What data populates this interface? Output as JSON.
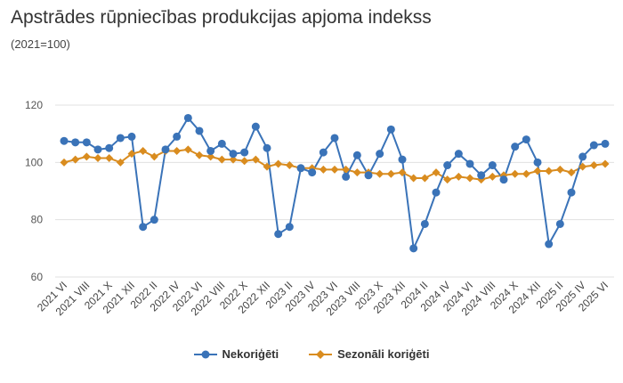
{
  "title": "Apstrādes rūpniecības produkcijas apjoma indekss",
  "subtitle": "(2021=100)",
  "chart_data": {
    "type": "line",
    "title": "Apstrādes rūpniecības produkcijas apjoma indekss",
    "subtitle": "(2021=100)",
    "xlabel": "",
    "ylabel": "",
    "ylim": [
      60,
      120
    ],
    "yticks": [
      60,
      80,
      100,
      120
    ],
    "grid": true,
    "legend_position": "bottom",
    "x": [
      "2021 VI",
      "2021 VII",
      "2021 VIII",
      "2021 IX",
      "2021 X",
      "2021 XI",
      "2021 XII",
      "2022 I",
      "2022 II",
      "2022 III",
      "2022 IV",
      "2022 V",
      "2022 VI",
      "2022 VII",
      "2022 VIII",
      "2022 IX",
      "2022 X",
      "2022 XI",
      "2022 XII",
      "2023 I",
      "2023 II",
      "2023 III",
      "2023 IV",
      "2023 V",
      "2023 VI",
      "2023 VII",
      "2023 VIII",
      "2023 IX",
      "2023 X",
      "2023 XI",
      "2023 XII",
      "2024 I",
      "2024 II",
      "2024 III",
      "2024 IV",
      "2024 V",
      "2024 VI",
      "2024 VII",
      "2024 VIII",
      "2024 IX",
      "2024 X",
      "2024 XI",
      "2024 XII",
      "2025 I",
      "2025 II",
      "2025 III",
      "2025 IV",
      "2025 V",
      "2025 VI"
    ],
    "x_tick_labels": [
      "2021 VI",
      "2021 VIII",
      "2021 X",
      "2021 XII",
      "2022 II",
      "2022 IV",
      "2022 VI",
      "2022 VIII",
      "2022 X",
      "2022 XII",
      "2023 II",
      "2023 IV",
      "2023 VI",
      "2023 VIII",
      "2023 X",
      "2023 XII",
      "2024 II",
      "2024 IV",
      "2024 VI",
      "2024 VIII",
      "2024 X",
      "2024 XII",
      "2025 II",
      "2025 IV",
      "2025 VI"
    ],
    "series": [
      {
        "name": "Nekoriģēti",
        "color": "#3a73b8",
        "marker": "circle",
        "values": [
          107.5,
          107,
          107,
          104.5,
          105,
          108.5,
          109,
          77.5,
          80,
          104.5,
          109,
          115.5,
          111,
          104,
          106.5,
          103,
          103.5,
          112.5,
          105,
          75,
          77.5,
          98,
          96.5,
          103.5,
          108.5,
          95,
          102.5,
          95.5,
          103,
          111.5,
          101,
          70,
          78.5,
          89.5,
          99,
          103,
          99.5,
          95.5,
          99,
          94,
          105.5,
          108,
          100,
          71.5,
          78.5,
          89.5,
          102,
          106,
          106.5
        ]
      },
      {
        "name": "Sezonāli koriģēti",
        "color": "#d98c1f",
        "marker": "diamond",
        "values": [
          100,
          101,
          102,
          101.5,
          101.5,
          100,
          103,
          104,
          102,
          104,
          104,
          104.5,
          102.5,
          102,
          101,
          101,
          100.5,
          101,
          98.5,
          99.5,
          99,
          98,
          98,
          97.5,
          97.5,
          97.5,
          96.5,
          96.5,
          96,
          96,
          96.5,
          94.5,
          94.5,
          96.5,
          94,
          95,
          94.5,
          94,
          95,
          95.5,
          96,
          96,
          97,
          97,
          97.5,
          96.5,
          98.5,
          99,
          99.5
        ]
      }
    ]
  }
}
